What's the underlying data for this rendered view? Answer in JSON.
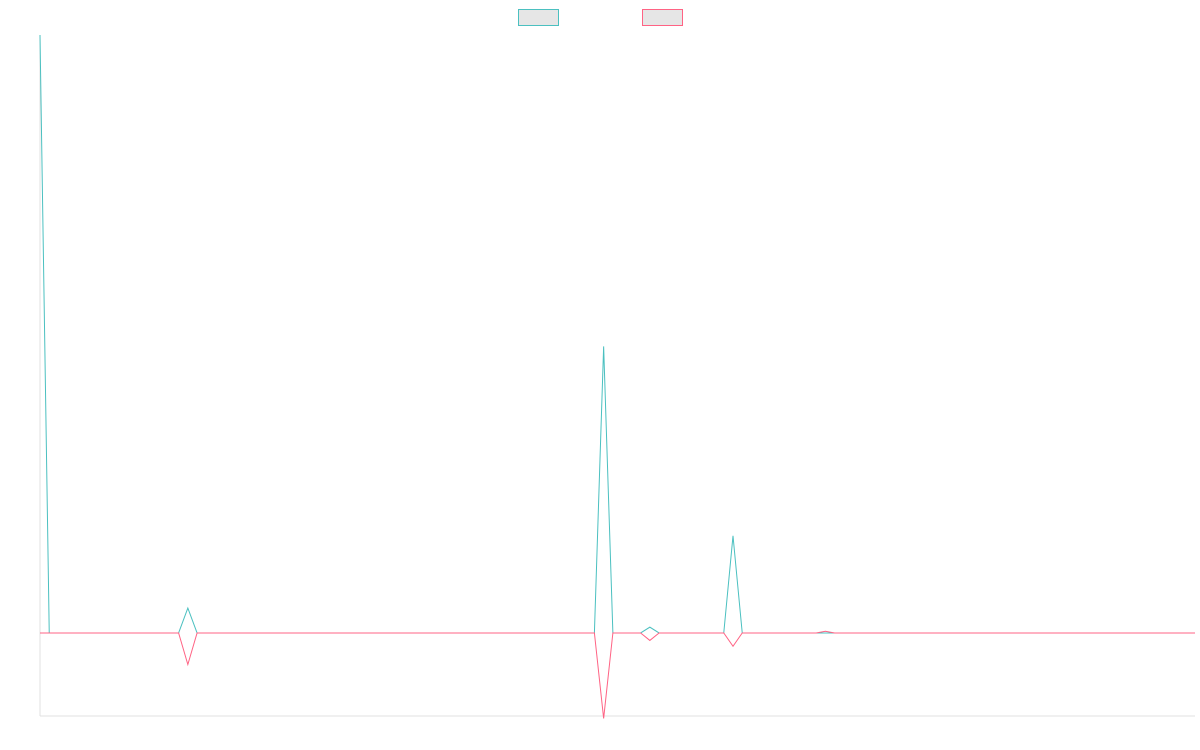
{
  "chart_data": {
    "type": "line",
    "title": "",
    "xlabel": "",
    "ylabel": "",
    "grid": false,
    "legend_position": "top-center",
    "x": [
      0,
      1,
      2,
      3,
      4,
      5,
      6,
      7,
      8,
      9,
      10,
      11,
      12,
      13,
      14,
      15,
      16,
      17,
      18,
      19,
      20,
      21,
      22,
      23,
      24,
      25,
      26,
      27,
      28,
      29,
      30,
      31,
      32,
      33,
      34,
      35,
      36,
      37,
      38,
      39,
      40,
      41,
      42,
      43,
      44,
      45,
      46,
      47,
      48,
      49,
      50,
      51,
      52,
      53,
      54,
      55,
      56,
      57,
      58,
      59,
      60,
      61,
      62,
      63,
      64,
      65,
      66,
      67,
      68,
      69,
      70,
      71,
      72,
      73,
      74,
      75,
      76,
      77,
      78,
      79,
      80,
      81,
      82,
      83,
      84,
      85,
      86,
      87,
      88,
      89,
      90,
      91,
      92,
      93,
      94,
      95,
      96,
      97,
      98,
      99,
      100,
      101,
      102,
      103,
      104,
      105,
      106,
      107,
      108,
      109,
      110,
      111,
      112,
      113,
      114,
      115,
      116,
      117,
      118,
      119,
      120,
      121,
      122,
      123,
      124,
      125
    ],
    "ylim": [
      -10000,
      72000
    ],
    "series": [
      {
        "color": "#4bc0c0",
        "values": [
          72000,
          0,
          0,
          0,
          0,
          0,
          0,
          0,
          0,
          0,
          0,
          0,
          0,
          0,
          0,
          0,
          3000,
          0,
          0,
          0,
          0,
          0,
          0,
          0,
          0,
          0,
          0,
          0,
          0,
          0,
          0,
          0,
          0,
          0,
          0,
          0,
          0,
          0,
          0,
          0,
          0,
          0,
          0,
          0,
          0,
          0,
          0,
          0,
          0,
          0,
          0,
          0,
          0,
          0,
          0,
          0,
          0,
          0,
          0,
          0,
          0,
          34500,
          0,
          0,
          0,
          0,
          700,
          0,
          0,
          0,
          0,
          0,
          0,
          0,
          0,
          11700,
          0,
          0,
          0,
          0,
          0,
          0,
          0,
          0,
          0,
          0,
          0,
          0,
          0,
          0,
          0,
          0,
          0,
          0,
          0,
          0,
          0,
          0,
          0,
          0,
          0,
          0,
          0,
          0,
          0,
          0,
          0,
          0,
          0,
          0,
          0,
          0,
          0,
          0,
          0,
          0,
          0,
          0,
          0,
          0,
          0,
          0,
          0,
          0,
          0,
          0
        ]
      },
      {
        "color": "#ff6384",
        "values": [
          0,
          0,
          0,
          0,
          0,
          0,
          0,
          0,
          0,
          0,
          0,
          0,
          0,
          0,
          0,
          0,
          -3800,
          0,
          0,
          0,
          0,
          0,
          0,
          0,
          0,
          0,
          0,
          0,
          0,
          0,
          0,
          0,
          0,
          0,
          0,
          0,
          0,
          0,
          0,
          0,
          0,
          0,
          0,
          0,
          0,
          0,
          0,
          0,
          0,
          0,
          0,
          0,
          0,
          0,
          0,
          0,
          0,
          0,
          0,
          0,
          0,
          -10300,
          0,
          0,
          0,
          0,
          -900,
          0,
          0,
          0,
          0,
          0,
          0,
          0,
          0,
          -1600,
          0,
          0,
          0,
          0,
          0,
          0,
          0,
          0,
          0,
          200,
          0,
          0,
          0,
          0,
          0,
          0,
          0,
          0,
          0,
          0,
          0,
          0,
          0,
          0,
          0,
          0,
          0,
          0,
          0,
          0,
          0,
          0,
          0,
          0,
          0,
          0,
          0,
          0,
          0,
          0,
          0,
          0,
          0,
          0,
          0,
          0,
          0,
          0,
          0,
          0
        ]
      }
    ]
  }
}
